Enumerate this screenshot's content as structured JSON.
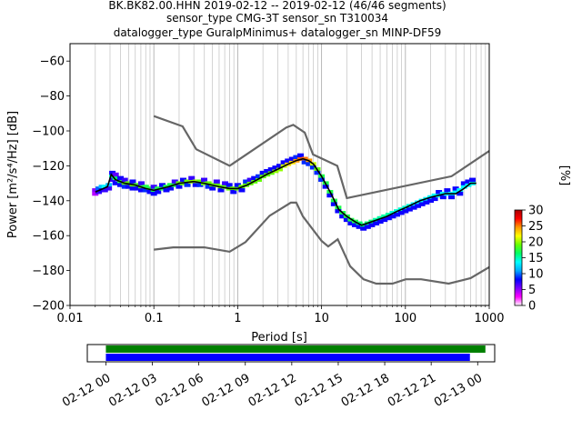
{
  "title": {
    "line1": "BK.BK82.00.HHN   2019-02-12 -- 2019-02-12  (46/46 segments)",
    "line2": "sensor_type CMG-3T sensor_sn T310034",
    "line3": "datalogger_type GuralpMinimus+ datalogger_sn MINP-DF59"
  },
  "chart_data": [
    {
      "type": "heatmap",
      "name": "probabilistic power spectral density",
      "x_scale": "log",
      "xlim": [
        0.01,
        1000
      ],
      "ylim": [
        -200,
        -50
      ],
      "xlabel": "Period [s]",
      "ylabel": "Power [m²/s⁴/Hz] [dB]",
      "x_ticks": [
        {
          "value": 0.01,
          "label": "0.01"
        },
        {
          "value": 0.1,
          "label": "0.1"
        },
        {
          "value": 1,
          "label": "1"
        },
        {
          "value": 10,
          "label": "10"
        },
        {
          "value": 100,
          "label": "100"
        },
        {
          "value": 1000,
          "label": "1000"
        }
      ],
      "y_ticks": [
        -200,
        -180,
        -160,
        -140,
        -120,
        -100,
        -80,
        -60
      ],
      "grid": "x-minor-and-major",
      "colorbar": {
        "label": "[%]",
        "range": [
          0,
          30
        ],
        "ticks": [
          0,
          5,
          10,
          15,
          20,
          25,
          30
        ],
        "colormap": [
          "#ffffff",
          "#ff00ff",
          "#7a00ff",
          "#0000ff",
          "#00aaff",
          "#00ffff",
          "#00ff66",
          "#66ff00",
          "#ffff00",
          "#ff9900",
          "#ff0000",
          "#aa0000"
        ]
      },
      "mean_curve": {
        "color": "#000000",
        "points": [
          [
            0.02,
            -135
          ],
          [
            0.025,
            -133
          ],
          [
            0.028,
            -132
          ],
          [
            0.031,
            -125
          ],
          [
            0.035,
            -128
          ],
          [
            0.045,
            -130
          ],
          [
            0.06,
            -131
          ],
          [
            0.08,
            -133
          ],
          [
            0.1,
            -134
          ],
          [
            0.15,
            -132
          ],
          [
            0.2,
            -130
          ],
          [
            0.3,
            -129
          ],
          [
            0.4,
            -130
          ],
          [
            0.6,
            -132
          ],
          [
            0.8,
            -133
          ],
          [
            1.0,
            -133
          ],
          [
            1.3,
            -131
          ],
          [
            1.7,
            -128
          ],
          [
            2.2,
            -125
          ],
          [
            3.0,
            -122
          ],
          [
            4.0,
            -119
          ],
          [
            5.0,
            -117
          ],
          [
            6.0,
            -116
          ],
          [
            7.0,
            -117
          ],
          [
            8.0,
            -119
          ],
          [
            10,
            -126
          ],
          [
            13,
            -136
          ],
          [
            16,
            -145
          ],
          [
            20,
            -149
          ],
          [
            25,
            -152
          ],
          [
            30,
            -154
          ],
          [
            40,
            -152
          ],
          [
            60,
            -149
          ],
          [
            80,
            -146
          ],
          [
            100,
            -144
          ],
          [
            150,
            -140
          ],
          [
            200,
            -138
          ],
          [
            300,
            -136
          ],
          [
            400,
            -136
          ],
          [
            500,
            -133
          ],
          [
            600,
            -130
          ],
          [
            700,
            -130
          ]
        ]
      },
      "noise_models": [
        {
          "id": "nhnm",
          "color": "#666666",
          "points": [
            [
              0.1,
              -91.5
            ],
            [
              0.22,
              -97.4
            ],
            [
              0.32,
              -110.5
            ],
            [
              0.8,
              -120
            ],
            [
              3.8,
              -98
            ],
            [
              4.6,
              -96.5
            ],
            [
              6.3,
              -101
            ],
            [
              7.9,
              -113.5
            ],
            [
              15.4,
              -120
            ],
            [
              20,
              -138.5
            ],
            [
              354.8,
              -126
            ],
            [
              1000,
              -111.5
            ]
          ]
        },
        {
          "id": "nlnm",
          "color": "#666666",
          "points": [
            [
              0.1,
              -168
            ],
            [
              0.17,
              -166.7
            ],
            [
              0.4,
              -166.7
            ],
            [
              0.8,
              -169.2
            ],
            [
              1.24,
              -163.7
            ],
            [
              2.4,
              -148.6
            ],
            [
              4.3,
              -141.1
            ],
            [
              5,
              -141.1
            ],
            [
              6,
              -149
            ],
            [
              10,
              -163
            ],
            [
              12,
              -166.2
            ],
            [
              15.6,
              -162.1
            ],
            [
              21.9,
              -177.5
            ],
            [
              31.6,
              -185
            ],
            [
              45,
              -187.5
            ],
            [
              70,
              -187.5
            ],
            [
              101,
              -185
            ],
            [
              154,
              -185
            ],
            [
              328,
              -187.5
            ],
            [
              600,
              -184.4
            ],
            [
              1000,
              -178
            ]
          ]
        }
      ],
      "pdf_cells": [
        [
          0.02,
          -134,
          3
        ],
        [
          0.02,
          -136,
          2
        ],
        [
          0.022,
          -133,
          8
        ],
        [
          0.022,
          -135,
          5
        ],
        [
          0.024,
          -132,
          10
        ],
        [
          0.024,
          -134,
          6
        ],
        [
          0.026,
          -132,
          12
        ],
        [
          0.026,
          -134,
          5
        ],
        [
          0.029,
          -131,
          10
        ],
        [
          0.029,
          -133,
          5
        ],
        [
          0.032,
          -126,
          14
        ],
        [
          0.032,
          -124,
          6
        ],
        [
          0.032,
          -128,
          5
        ],
        [
          0.035,
          -127,
          15
        ],
        [
          0.035,
          -125,
          4
        ],
        [
          0.035,
          -130,
          6
        ],
        [
          0.04,
          -129,
          16
        ],
        [
          0.04,
          -127,
          6
        ],
        [
          0.04,
          -131,
          6
        ],
        [
          0.045,
          -130,
          18
        ],
        [
          0.045,
          -128,
          5
        ],
        [
          0.045,
          -132,
          7
        ],
        [
          0.05,
          -130,
          18
        ],
        [
          0.05,
          -132,
          6
        ],
        [
          0.056,
          -131,
          18
        ],
        [
          0.056,
          -129,
          6
        ],
        [
          0.056,
          -133,
          6
        ],
        [
          0.063,
          -131,
          17
        ],
        [
          0.063,
          -133,
          6
        ],
        [
          0.071,
          -132,
          17
        ],
        [
          0.071,
          -130,
          5
        ],
        [
          0.071,
          -134,
          6
        ],
        [
          0.08,
          -132,
          16
        ],
        [
          0.08,
          -134,
          7
        ],
        [
          0.09,
          -133,
          16
        ],
        [
          0.09,
          -135,
          6
        ],
        [
          0.1,
          -134,
          16
        ],
        [
          0.1,
          -136,
          6
        ],
        [
          0.1,
          -132,
          5
        ],
        [
          0.112,
          -133,
          16
        ],
        [
          0.112,
          -135,
          6
        ],
        [
          0.126,
          -133,
          16
        ],
        [
          0.126,
          -131,
          6
        ],
        [
          0.141,
          -132,
          16
        ],
        [
          0.141,
          -134,
          6
        ],
        [
          0.158,
          -131,
          16
        ],
        [
          0.158,
          -133,
          6
        ],
        [
          0.178,
          -131,
          16
        ],
        [
          0.178,
          -129,
          5
        ],
        [
          0.2,
          -130,
          18
        ],
        [
          0.2,
          -132,
          6
        ],
        [
          0.224,
          -130,
          18
        ],
        [
          0.224,
          -128,
          6
        ],
        [
          0.251,
          -129,
          18
        ],
        [
          0.251,
          -131,
          7
        ],
        [
          0.282,
          -129,
          19
        ],
        [
          0.282,
          -127,
          5
        ],
        [
          0.316,
          -129,
          19
        ],
        [
          0.316,
          -131,
          6
        ],
        [
          0.355,
          -129,
          18
        ],
        [
          0.355,
          -131,
          7
        ],
        [
          0.398,
          -130,
          18
        ],
        [
          0.398,
          -128,
          5
        ],
        [
          0.447,
          -130,
          18
        ],
        [
          0.447,
          -132,
          7
        ],
        [
          0.501,
          -131,
          18
        ],
        [
          0.501,
          -133,
          6
        ],
        [
          0.562,
          -131,
          18
        ],
        [
          0.562,
          -129,
          5
        ],
        [
          0.631,
          -132,
          18
        ],
        [
          0.631,
          -134,
          6
        ],
        [
          0.708,
          -132,
          18
        ],
        [
          0.708,
          -130,
          5
        ],
        [
          0.794,
          -133,
          18
        ],
        [
          0.794,
          -131,
          6
        ],
        [
          0.891,
          -133,
          18
        ],
        [
          0.891,
          -135,
          6
        ],
        [
          1.0,
          -133,
          18
        ],
        [
          1.0,
          -131,
          6
        ],
        [
          1.12,
          -132,
          18
        ],
        [
          1.12,
          -134,
          6
        ],
        [
          1.26,
          -131,
          18
        ],
        [
          1.26,
          -129,
          7
        ],
        [
          1.41,
          -130,
          18
        ],
        [
          1.41,
          -128,
          5
        ],
        [
          1.58,
          -129,
          18
        ],
        [
          1.58,
          -127,
          6
        ],
        [
          1.78,
          -128,
          18
        ],
        [
          1.78,
          -126,
          7
        ],
        [
          2.0,
          -126,
          18
        ],
        [
          2.0,
          -124,
          6
        ],
        [
          2.24,
          -125,
          18
        ],
        [
          2.24,
          -123,
          6
        ],
        [
          2.51,
          -124,
          18
        ],
        [
          2.51,
          -122,
          6
        ],
        [
          2.82,
          -123,
          19
        ],
        [
          2.82,
          -121,
          6
        ],
        [
          3.16,
          -122,
          19
        ],
        [
          3.16,
          -120,
          6
        ],
        [
          3.55,
          -120,
          20
        ],
        [
          3.55,
          -118,
          6
        ],
        [
          3.98,
          -119,
          22
        ],
        [
          3.98,
          -117,
          6
        ],
        [
          4.47,
          -118,
          22
        ],
        [
          4.47,
          -116,
          6
        ],
        [
          5.01,
          -117,
          24
        ],
        [
          5.01,
          -115,
          7
        ],
        [
          5.62,
          -116,
          25
        ],
        [
          5.62,
          -114,
          6
        ],
        [
          6.31,
          -116,
          25
        ],
        [
          6.31,
          -118,
          7
        ],
        [
          7.08,
          -117,
          24
        ],
        [
          7.08,
          -119,
          7
        ],
        [
          7.94,
          -119,
          20
        ],
        [
          7.94,
          -121,
          7
        ],
        [
          8.91,
          -122,
          18
        ],
        [
          8.91,
          -124,
          7
        ],
        [
          10,
          -126,
          16
        ],
        [
          10,
          -128,
          7
        ],
        [
          11.2,
          -130,
          16
        ],
        [
          11.2,
          -132,
          6
        ],
        [
          12.6,
          -135,
          16
        ],
        [
          12.6,
          -137,
          6
        ],
        [
          14.1,
          -140,
          16
        ],
        [
          14.1,
          -142,
          6
        ],
        [
          15.8,
          -144,
          16
        ],
        [
          15.8,
          -146,
          6
        ],
        [
          17.8,
          -147,
          16
        ],
        [
          17.8,
          -149,
          6
        ],
        [
          20,
          -149,
          16
        ],
        [
          20,
          -151,
          6
        ],
        [
          22.4,
          -151,
          16
        ],
        [
          22.4,
          -153,
          6
        ],
        [
          25.1,
          -152,
          16
        ],
        [
          25.1,
          -154,
          6
        ],
        [
          28.2,
          -153,
          15
        ],
        [
          28.2,
          -155,
          6
        ],
        [
          31.6,
          -154,
          15
        ],
        [
          31.6,
          -156,
          6
        ],
        [
          35.5,
          -153,
          15
        ],
        [
          35.5,
          -155,
          6
        ],
        [
          39.8,
          -152,
          15
        ],
        [
          39.8,
          -154,
          6
        ],
        [
          44.7,
          -151,
          14
        ],
        [
          44.7,
          -153,
          6
        ],
        [
          50.1,
          -150,
          14
        ],
        [
          50.1,
          -152,
          6
        ],
        [
          56.2,
          -149,
          14
        ],
        [
          56.2,
          -151,
          6
        ],
        [
          63.1,
          -148,
          14
        ],
        [
          63.1,
          -150,
          6
        ],
        [
          70.8,
          -147,
          13
        ],
        [
          70.8,
          -149,
          6
        ],
        [
          79.4,
          -146,
          13
        ],
        [
          79.4,
          -148,
          6
        ],
        [
          89.1,
          -145,
          13
        ],
        [
          89.1,
          -147,
          6
        ],
        [
          100,
          -144,
          13
        ],
        [
          100,
          -146,
          6
        ],
        [
          112,
          -143,
          13
        ],
        [
          112,
          -145,
          6
        ],
        [
          126,
          -142,
          12
        ],
        [
          126,
          -144,
          6
        ],
        [
          141,
          -141,
          12
        ],
        [
          141,
          -143,
          6
        ],
        [
          158,
          -140,
          12
        ],
        [
          158,
          -142,
          6
        ],
        [
          178,
          -139,
          12
        ],
        [
          178,
          -141,
          6
        ],
        [
          200,
          -138,
          12
        ],
        [
          200,
          -140,
          6
        ],
        [
          224,
          -137,
          12
        ],
        [
          224,
          -139,
          6
        ],
        [
          251,
          -137,
          12
        ],
        [
          251,
          -135,
          6
        ],
        [
          282,
          -136,
          12
        ],
        [
          282,
          -138,
          6
        ],
        [
          316,
          -136,
          12
        ],
        [
          316,
          -134,
          6
        ],
        [
          355,
          -136,
          12
        ],
        [
          355,
          -138,
          6
        ],
        [
          398,
          -135,
          12
        ],
        [
          398,
          -133,
          6
        ],
        [
          447,
          -134,
          12
        ],
        [
          447,
          -136,
          6
        ],
        [
          501,
          -132,
          12
        ],
        [
          501,
          -130,
          6
        ],
        [
          562,
          -131,
          12
        ],
        [
          562,
          -129,
          6
        ],
        [
          631,
          -130,
          12
        ],
        [
          631,
          -128,
          6
        ]
      ]
    },
    {
      "type": "timeline",
      "name": "data coverage",
      "x_ticks": [
        "02-12 00",
        "02-12 03",
        "02-12 06",
        "02-12 09",
        "02-12 12",
        "02-12 15",
        "02-12 18",
        "02-12 21",
        "02-13 00"
      ],
      "x_range_hours": [
        -1.2,
        25.1
      ],
      "bars": [
        {
          "id": "data-available",
          "color": "#008000",
          "start_hour": 0,
          "end_hour": 24.5
        },
        {
          "id": "data-used",
          "color": "#0000ff",
          "start_hour": 0,
          "end_hour": 23.5
        }
      ]
    }
  ]
}
